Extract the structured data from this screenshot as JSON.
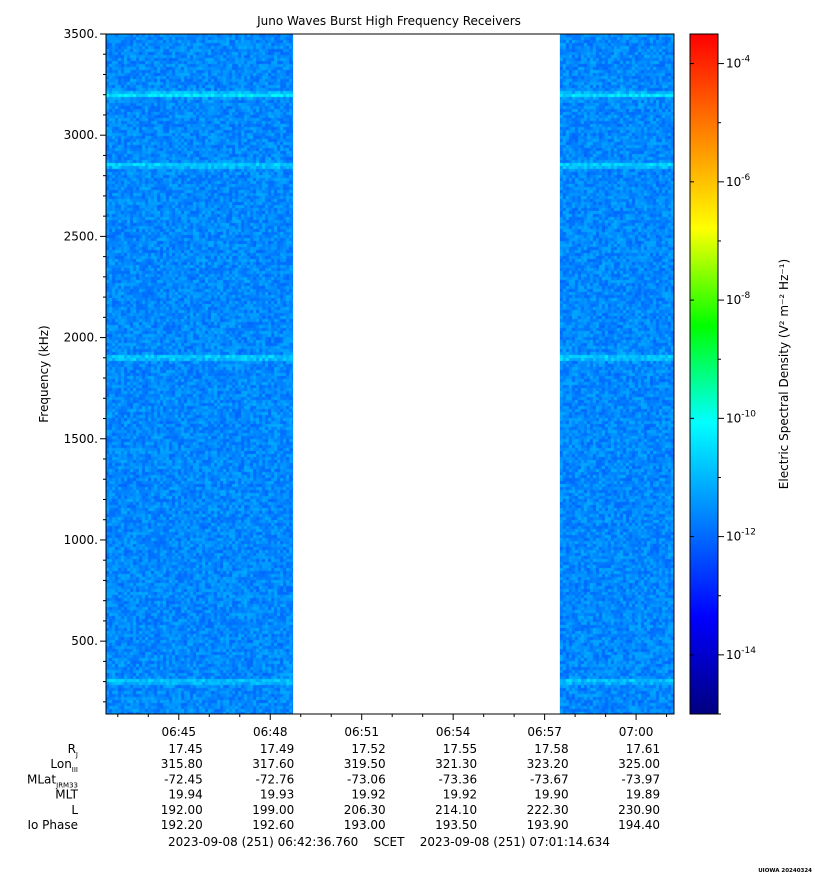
{
  "chart_data": {
    "type": "heatmap",
    "title": "Juno Waves Burst High Frequency Receivers",
    "ylabel": "Frequency (kHz)",
    "ylim": [
      140,
      3500
    ],
    "yticks": [
      500,
      1000,
      1500,
      2000,
      2500,
      3000,
      3500
    ],
    "ytick_labels": [
      "500.",
      "1000.",
      "1500.",
      "2000.",
      "2500.",
      "3000.",
      "3500."
    ],
    "xlim_min": [
      42.6127,
      61.2436
    ],
    "xticks_min": [
      45,
      48,
      51,
      54,
      57,
      60
    ],
    "xtick_labels": [
      "06:45",
      "06:48",
      "06:51",
      "06:54",
      "06:57",
      "07:00"
    ],
    "data_segments_min": [
      [
        42.6127,
        48.75
      ],
      [
        57.5,
        61.2436
      ]
    ],
    "emission_lines_khz": [
      {
        "freq": 3200,
        "strength": 0.7
      },
      {
        "freq": 2850,
        "strength": 0.6
      },
      {
        "freq": 1900,
        "strength": 0.6
      },
      {
        "freq": 300,
        "strength": 0.5
      }
    ],
    "background_log10_density": -11.6,
    "colorbar": {
      "label": "Electric Spectral Density (V² m⁻² Hz⁻¹)",
      "log_scale": true,
      "range_log10": [
        -15,
        -3.5
      ],
      "tick_exponents": [
        -14,
        -12,
        -10,
        -8,
        -6,
        -4
      ],
      "colors": [
        "#000080",
        "#0000ff",
        "#0080ff",
        "#00ffff",
        "#00ff00",
        "#ffff00",
        "#ff8000",
        "#ff0000"
      ]
    },
    "ephemeris": {
      "rows": [
        {
          "label": "R",
          "sub": "J",
          "values": [
            "17.45",
            "17.49",
            "17.52",
            "17.55",
            "17.58",
            "17.61"
          ]
        },
        {
          "label": "Lon",
          "sub": "III",
          "values": [
            "315.80",
            "317.60",
            "319.50",
            "321.30",
            "323.20",
            "325.00"
          ]
        },
        {
          "label": "MLat",
          "sub": "JRM33",
          "values": [
            "-72.45",
            "-72.76",
            "-73.06",
            "-73.36",
            "-73.67",
            "-73.97"
          ]
        },
        {
          "label": "MLT",
          "sub": "",
          "values": [
            "19.94",
            "19.93",
            "19.92",
            "19.92",
            "19.90",
            "19.89"
          ]
        },
        {
          "label": "L",
          "sub": "",
          "values": [
            "192.00",
            "199.00",
            "206.30",
            "214.10",
            "222.30",
            "230.90"
          ]
        },
        {
          "label": "Io Phase",
          "sub": "",
          "values": [
            "192.20",
            "192.60",
            "193.00",
            "193.50",
            "193.90",
            "194.40"
          ]
        }
      ]
    }
  },
  "footer": {
    "time_range": "2023-09-08 (251) 06:42:36.760    SCET    2023-09-08 (251) 07:01:14.634",
    "version": "UIOWA 20240324"
  }
}
